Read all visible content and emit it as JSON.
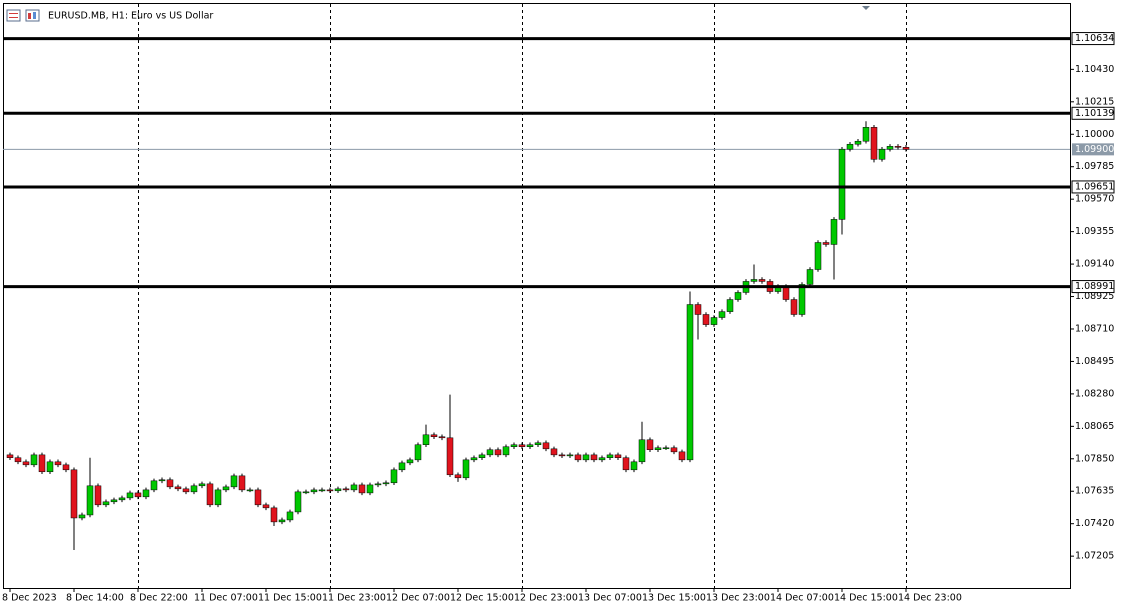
{
  "chart_data": {
    "type": "candlestick",
    "title": "EURUSD.MB, H1:  Euro vs US Dollar",
    "categories": [
      "8 Dec 2023",
      null,
      null,
      null,
      null,
      null,
      null,
      null,
      "8 Dec 14:00",
      null,
      null,
      null,
      null,
      null,
      null,
      null,
      "8 Dec 22:00",
      null,
      null,
      null,
      null,
      null,
      null,
      null,
      "11 Dec 07:00",
      null,
      null,
      null,
      null,
      null,
      null,
      null,
      "11 Dec 15:00",
      null,
      null,
      null,
      null,
      null,
      null,
      null,
      "11 Dec 23:00",
      null,
      null,
      null,
      null,
      null,
      null,
      null,
      "12 Dec 07:00",
      null,
      null,
      null,
      null,
      null,
      null,
      null,
      "12 Dec 15:00",
      null,
      null,
      null,
      null,
      null,
      null,
      null,
      "12 Dec 23:00",
      null,
      null,
      null,
      null,
      null,
      null,
      null,
      "13 Dec 07:00",
      null,
      null,
      null,
      null,
      null,
      null,
      null,
      "13 Dec 15:00",
      null,
      null,
      null,
      null,
      null,
      null,
      null,
      "13 Dec 23:00",
      null,
      null,
      null,
      null,
      null,
      null,
      null,
      "14 Dec 07:00",
      null,
      null,
      null,
      null,
      null,
      null,
      null,
      "14 Dec 15:00",
      null,
      null,
      null,
      null,
      null,
      null,
      null,
      "14 Dec 23:00"
    ],
    "open": [
      1.07876,
      1.07857,
      1.0783,
      1.0781,
      1.07876,
      1.07764,
      1.0783,
      1.0781,
      1.07777,
      1.07458,
      1.07478,
      1.07671,
      1.07545,
      1.07565,
      1.07578,
      1.07591,
      1.07624,
      1.07598,
      1.07644,
      1.07704,
      1.07711,
      1.07664,
      1.07651,
      1.07631,
      1.07671,
      1.07684,
      1.07545,
      1.07644,
      1.07664,
      1.07737,
      1.07644,
      1.07644,
      1.07545,
      1.07525,
      1.07432,
      1.07445,
      1.07498,
      1.07631,
      1.07631,
      1.07644,
      1.07644,
      1.07638,
      1.07651,
      1.07644,
      1.07677,
      1.07624,
      1.07677,
      1.07684,
      1.07691,
      1.07777,
      1.07823,
      1.07843,
      1.07943,
      1.08009,
      1.07996,
      1.07989,
      1.07744,
      1.07724,
      1.07843,
      1.07857,
      1.07876,
      1.0791,
      1.07876,
      1.0793,
      1.07943,
      1.0793,
      1.07943,
      1.07956,
      1.07916,
      1.07876,
      1.0787,
      1.07876,
      1.07843,
      1.07876,
      1.07843,
      1.07857,
      1.07876,
      1.07857,
      1.07777,
      1.0783,
      1.07976,
      1.0791,
      1.07923,
      1.07923,
      1.07896,
      1.07843,
      1.08872,
      1.08806,
      1.08739,
      1.08786,
      1.08825,
      1.08905,
      1.08952,
      1.09025,
      1.09038,
      1.09025,
      1.08958,
      1.08991,
      1.08905,
      1.08806,
      1.09005,
      1.09104,
      1.09283,
      1.0927,
      1.09436,
      1.09901,
      1.09934,
      1.09954,
      1.10046,
      1.09834,
      1.09901,
      1.0992,
      1.09914
    ],
    "high": [
      1.07891,
      1.07872,
      1.07845,
      1.07891,
      1.07891,
      1.07845,
      1.07845,
      1.07825,
      1.07792,
      1.07493,
      1.07857,
      1.07686,
      1.0758,
      1.07593,
      1.07606,
      1.07639,
      1.07639,
      1.07659,
      1.07719,
      1.07726,
      1.07726,
      1.07679,
      1.07666,
      1.07686,
      1.07699,
      1.07699,
      1.07659,
      1.07679,
      1.07752,
      1.07752,
      1.07659,
      1.07659,
      1.0756,
      1.0754,
      1.0746,
      1.07513,
      1.07646,
      1.07646,
      1.07659,
      1.07659,
      1.07659,
      1.07666,
      1.07666,
      1.07692,
      1.07692,
      1.07692,
      1.07699,
      1.07706,
      1.07792,
      1.07838,
      1.07858,
      1.07958,
      1.08076,
      1.08024,
      1.08011,
      1.08275,
      1.07759,
      1.07858,
      1.07872,
      1.07891,
      1.07925,
      1.07925,
      1.07945,
      1.07958,
      1.07958,
      1.07958,
      1.07971,
      1.07971,
      1.07931,
      1.07891,
      1.07891,
      1.07891,
      1.07891,
      1.07891,
      1.07872,
      1.07891,
      1.07891,
      1.07872,
      1.07845,
      1.08095,
      1.07991,
      1.07938,
      1.07938,
      1.07938,
      1.07911,
      1.08958,
      1.08887,
      1.08821,
      1.08801,
      1.0884,
      1.0892,
      1.08967,
      1.0904,
      1.09137,
      1.09053,
      1.0904,
      1.09006,
      1.09006,
      1.0892,
      1.0902,
      1.09119,
      1.09298,
      1.09298,
      1.09451,
      1.09916,
      1.09949,
      1.09969,
      1.10086,
      1.10061,
      1.09916,
      1.09935,
      1.09935,
      1.09929
    ],
    "low": [
      1.07842,
      1.07815,
      1.07795,
      1.07795,
      1.07749,
      1.07749,
      1.07795,
      1.07762,
      1.07246,
      1.07443,
      1.07463,
      1.0753,
      1.0753,
      1.0755,
      1.07563,
      1.07576,
      1.07583,
      1.07583,
      1.07629,
      1.07689,
      1.07649,
      1.07636,
      1.07616,
      1.07616,
      1.07656,
      1.0753,
      1.0753,
      1.07629,
      1.07649,
      1.07629,
      1.07629,
      1.0753,
      1.0751,
      1.07405,
      1.07417,
      1.0743,
      1.07483,
      1.07616,
      1.07616,
      1.07629,
      1.07623,
      1.07623,
      1.07629,
      1.07629,
      1.07609,
      1.07609,
      1.07662,
      1.07669,
      1.07676,
      1.07762,
      1.07808,
      1.07828,
      1.07928,
      1.07981,
      1.07974,
      1.07729,
      1.07697,
      1.07709,
      1.07828,
      1.07842,
      1.07861,
      1.07861,
      1.07861,
      1.07915,
      1.07915,
      1.07915,
      1.07928,
      1.07901,
      1.07861,
      1.07855,
      1.07855,
      1.07828,
      1.07828,
      1.07828,
      1.07828,
      1.07842,
      1.07842,
      1.07762,
      1.07762,
      1.07815,
      1.07895,
      1.07895,
      1.07908,
      1.07881,
      1.07828,
      1.07828,
      1.0864,
      1.08724,
      1.08724,
      1.08771,
      1.0881,
      1.0889,
      1.08937,
      1.0901,
      1.0901,
      1.08943,
      1.08943,
      1.0889,
      1.08791,
      1.08791,
      1.0899,
      1.09089,
      1.09255,
      1.09038,
      1.09336,
      1.09886,
      1.09919,
      1.09939,
      1.09814,
      1.09819,
      1.09886,
      1.09899,
      1.09885
    ],
    "close": [
      1.07857,
      1.0783,
      1.0781,
      1.07876,
      1.07764,
      1.0783,
      1.0781,
      1.07777,
      1.07458,
      1.07478,
      1.07671,
      1.07545,
      1.07565,
      1.07578,
      1.07591,
      1.07624,
      1.07598,
      1.07644,
      1.07704,
      1.07711,
      1.07664,
      1.07651,
      1.07631,
      1.07671,
      1.07684,
      1.07545,
      1.07644,
      1.07664,
      1.07737,
      1.07644,
      1.07644,
      1.07545,
      1.07525,
      1.07432,
      1.07445,
      1.07498,
      1.07631,
      1.07631,
      1.07644,
      1.07644,
      1.07638,
      1.07651,
      1.07644,
      1.07677,
      1.07624,
      1.07677,
      1.07684,
      1.07691,
      1.07777,
      1.07823,
      1.07843,
      1.07943,
      1.08009,
      1.07996,
      1.07989,
      1.07744,
      1.07724,
      1.07843,
      1.07857,
      1.07876,
      1.0791,
      1.07876,
      1.0793,
      1.07943,
      1.0793,
      1.07943,
      1.07956,
      1.07916,
      1.07876,
      1.0787,
      1.07876,
      1.07843,
      1.07876,
      1.07843,
      1.07857,
      1.07876,
      1.07857,
      1.07777,
      1.0783,
      1.07976,
      1.0791,
      1.07923,
      1.07923,
      1.07896,
      1.07843,
      1.08872,
      1.08806,
      1.08739,
      1.08786,
      1.08825,
      1.08905,
      1.08952,
      1.09025,
      1.09038,
      1.09025,
      1.08958,
      1.08991,
      1.08905,
      1.08806,
      1.09005,
      1.09104,
      1.09283,
      1.0927,
      1.09436,
      1.09901,
      1.09934,
      1.09954,
      1.10046,
      1.09834,
      1.09901,
      1.0992,
      1.09914,
      1.099
    ],
    "up_color": "#00c800",
    "down_color": "#e0141e",
    "ylim": [
      1.06994,
      1.10863
    ],
    "yticks": [
      {
        "value": 1.1043,
        "label": "1.10430"
      },
      1.10215,
      {
        "value": 1.1,
        "label": "1.10000"
      },
      1.09785,
      {
        "value": 1.0957,
        "label": "1.09570"
      },
      1.09355,
      {
        "value": 1.0914,
        "label": "1.09140"
      },
      1.08925,
      {
        "value": 1.0871,
        "label": "1.08710"
      },
      1.08495,
      {
        "value": 1.0828,
        "label": "1.08280"
      },
      1.08065,
      {
        "value": 1.0785,
        "label": "1.07850"
      },
      1.07635,
      {
        "value": 1.0742,
        "label": "1.07420"
      },
      1.07205
    ],
    "levels": [
      1.10634,
      1.10139,
      1.09651,
      1.08991
    ],
    "level_color": "#000000",
    "bid": {
      "value": 1.099,
      "label": "1.09900"
    },
    "bid_color": "#8c9aa8",
    "grid": true
  }
}
